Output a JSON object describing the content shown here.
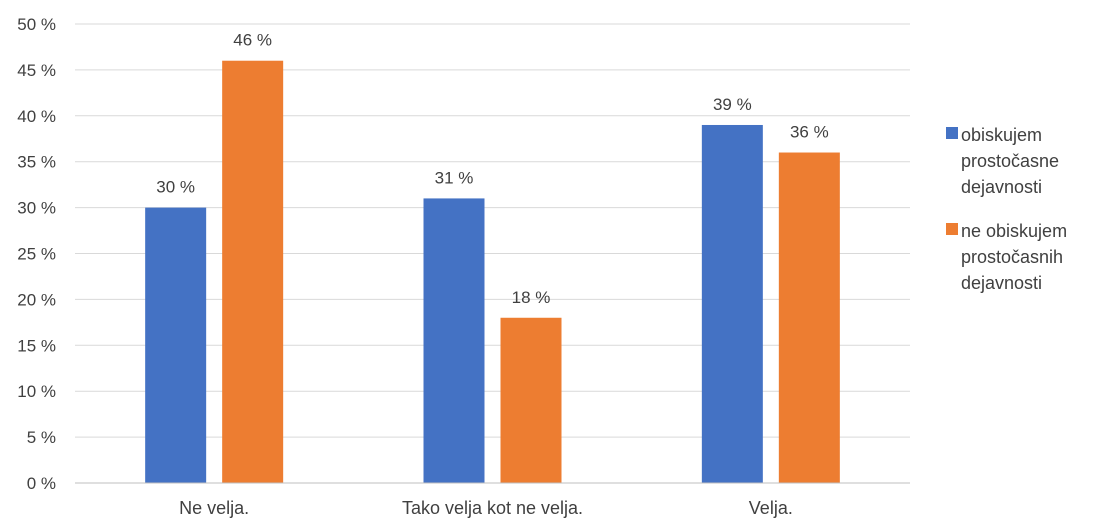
{
  "chart_data": {
    "type": "bar",
    "categories": [
      "Ne velja.",
      "Tako velja kot ne velja.",
      "Velja."
    ],
    "series": [
      {
        "name": "obiskujem prostočasne dejavnosti",
        "values": [
          30,
          31,
          39
        ],
        "color": "#4472c4",
        "labels": [
          "30 %",
          "31 %",
          "39 %"
        ]
      },
      {
        "name": "ne obiskujem prostočasnih dejavnosti",
        "values": [
          46,
          18,
          36
        ],
        "color": "#ed7d31",
        "labels": [
          "46 %",
          "18 %",
          "36 %"
        ]
      }
    ],
    "ylim": [
      0,
      50
    ],
    "yticks": [
      0,
      5,
      10,
      15,
      20,
      25,
      30,
      35,
      40,
      45,
      50
    ],
    "ytick_labels": [
      "0 %",
      "5 %",
      "10 %",
      "15 %",
      "20 %",
      "25 %",
      "30 %",
      "35 %",
      "40 %",
      "45 %",
      "50 %"
    ],
    "grid": true,
    "legend_position": "right"
  }
}
